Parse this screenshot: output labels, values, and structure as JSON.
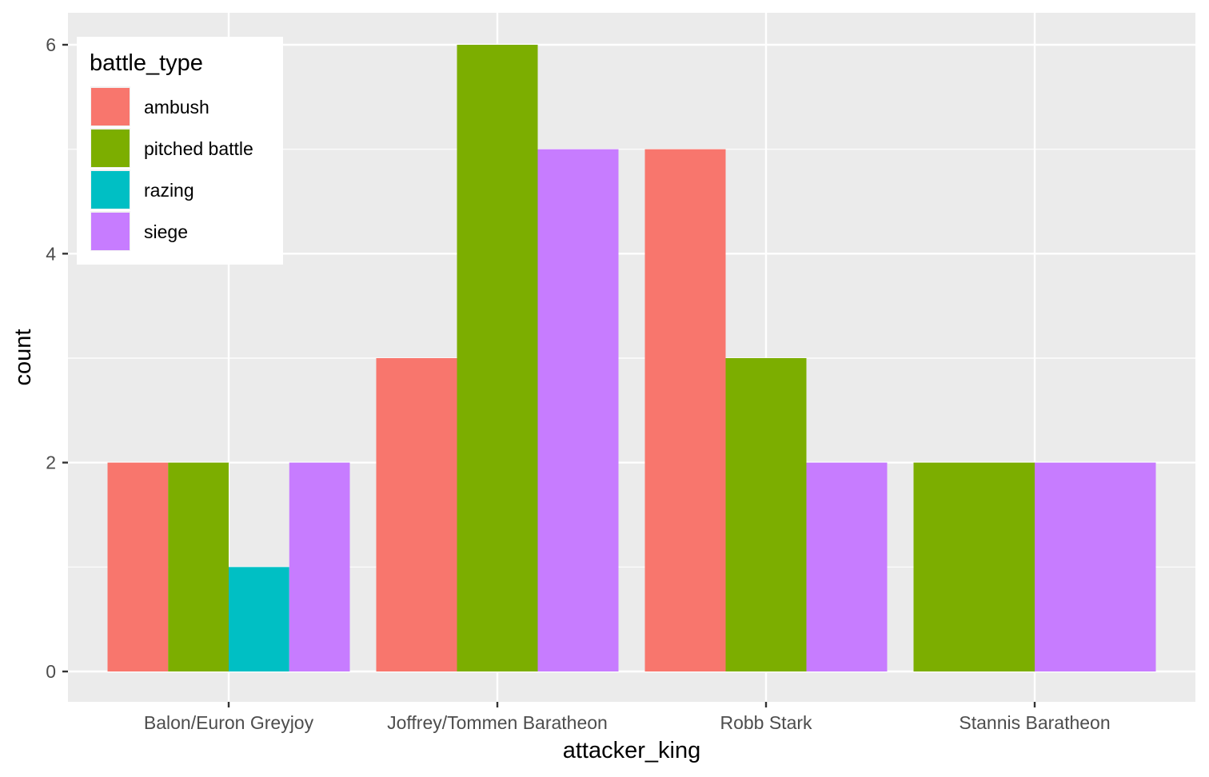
{
  "chart_data": {
    "type": "bar",
    "mode": "dodge",
    "categories": [
      "Balon/Euron Greyjoy",
      "Joffrey/Tommen Baratheon",
      "Robb Stark",
      "Stannis Baratheon"
    ],
    "series": [
      {
        "name": "ambush",
        "color": "#F8766D",
        "values": [
          2,
          3,
          5,
          0
        ]
      },
      {
        "name": "pitched battle",
        "color": "#7CAE00",
        "values": [
          2,
          6,
          3,
          2
        ]
      },
      {
        "name": "razing",
        "color": "#00BFC4",
        "values": [
          1,
          0,
          0,
          0
        ]
      },
      {
        "name": "siege",
        "color": "#C77CFF",
        "values": [
          2,
          5,
          2,
          2
        ]
      }
    ],
    "xlabel": "attacker_king",
    "ylabel": "count",
    "ylim": [
      -0.25,
      6.3
    ],
    "yticks": [
      0,
      2,
      4,
      6
    ],
    "legend": {
      "title": "battle_type",
      "position": "top-left-inside"
    },
    "grid": true,
    "panel_background": "#EBEBEB",
    "grid_color": "#FFFFFF"
  }
}
